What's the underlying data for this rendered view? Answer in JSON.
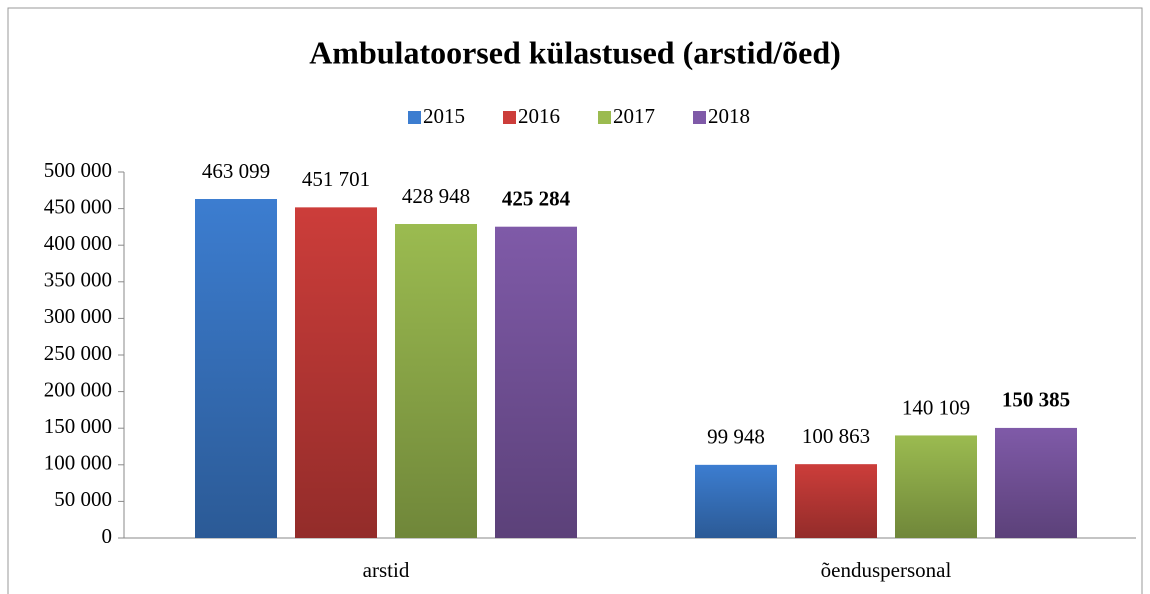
{
  "chart_data": {
    "type": "bar",
    "title": "Ambulatoorsed külastused (arstid/õed)",
    "categories": [
      "arstid",
      "õenduspersonal"
    ],
    "series": [
      {
        "name": "2015",
        "color": "#3c7dd0",
        "values": [
          463099,
          99948
        ],
        "value_labels": [
          "463 099",
          "99 948"
        ]
      },
      {
        "name": "2016",
        "color": "#cc3d3a",
        "values": [
          451701,
          100863
        ],
        "value_labels": [
          "451 701",
          "100 863"
        ]
      },
      {
        "name": "2017",
        "color": "#9bbb50",
        "values": [
          428948,
          140109
        ],
        "value_labels": [
          "428 948",
          "140 109"
        ]
      },
      {
        "name": "2018",
        "color": "#7f5aa8",
        "values": [
          425284,
          150385
        ],
        "value_labels": [
          "425 284",
          "150 385"
        ]
      }
    ],
    "ylim": [
      0,
      500000
    ],
    "yticks": [
      0,
      {
        "value": 50000,
        "label": "50 000"
      },
      {
        "value": 100000,
        "label": "100 000"
      },
      {
        "value": 150000,
        "label": "150 000"
      },
      {
        "value": 200000,
        "label": "200 000"
      },
      {
        "value": 250000,
        "label": "250 000"
      },
      {
        "value": 300000,
        "label": "300 000"
      },
      {
        "value": 350000,
        "label": "350 000"
      },
      {
        "value": 400000,
        "label": "400 000"
      },
      {
        "value": 450000,
        "label": "450 000"
      },
      {
        "value": 500000,
        "label": "500 000"
      }
    ],
    "legend": "top"
  }
}
